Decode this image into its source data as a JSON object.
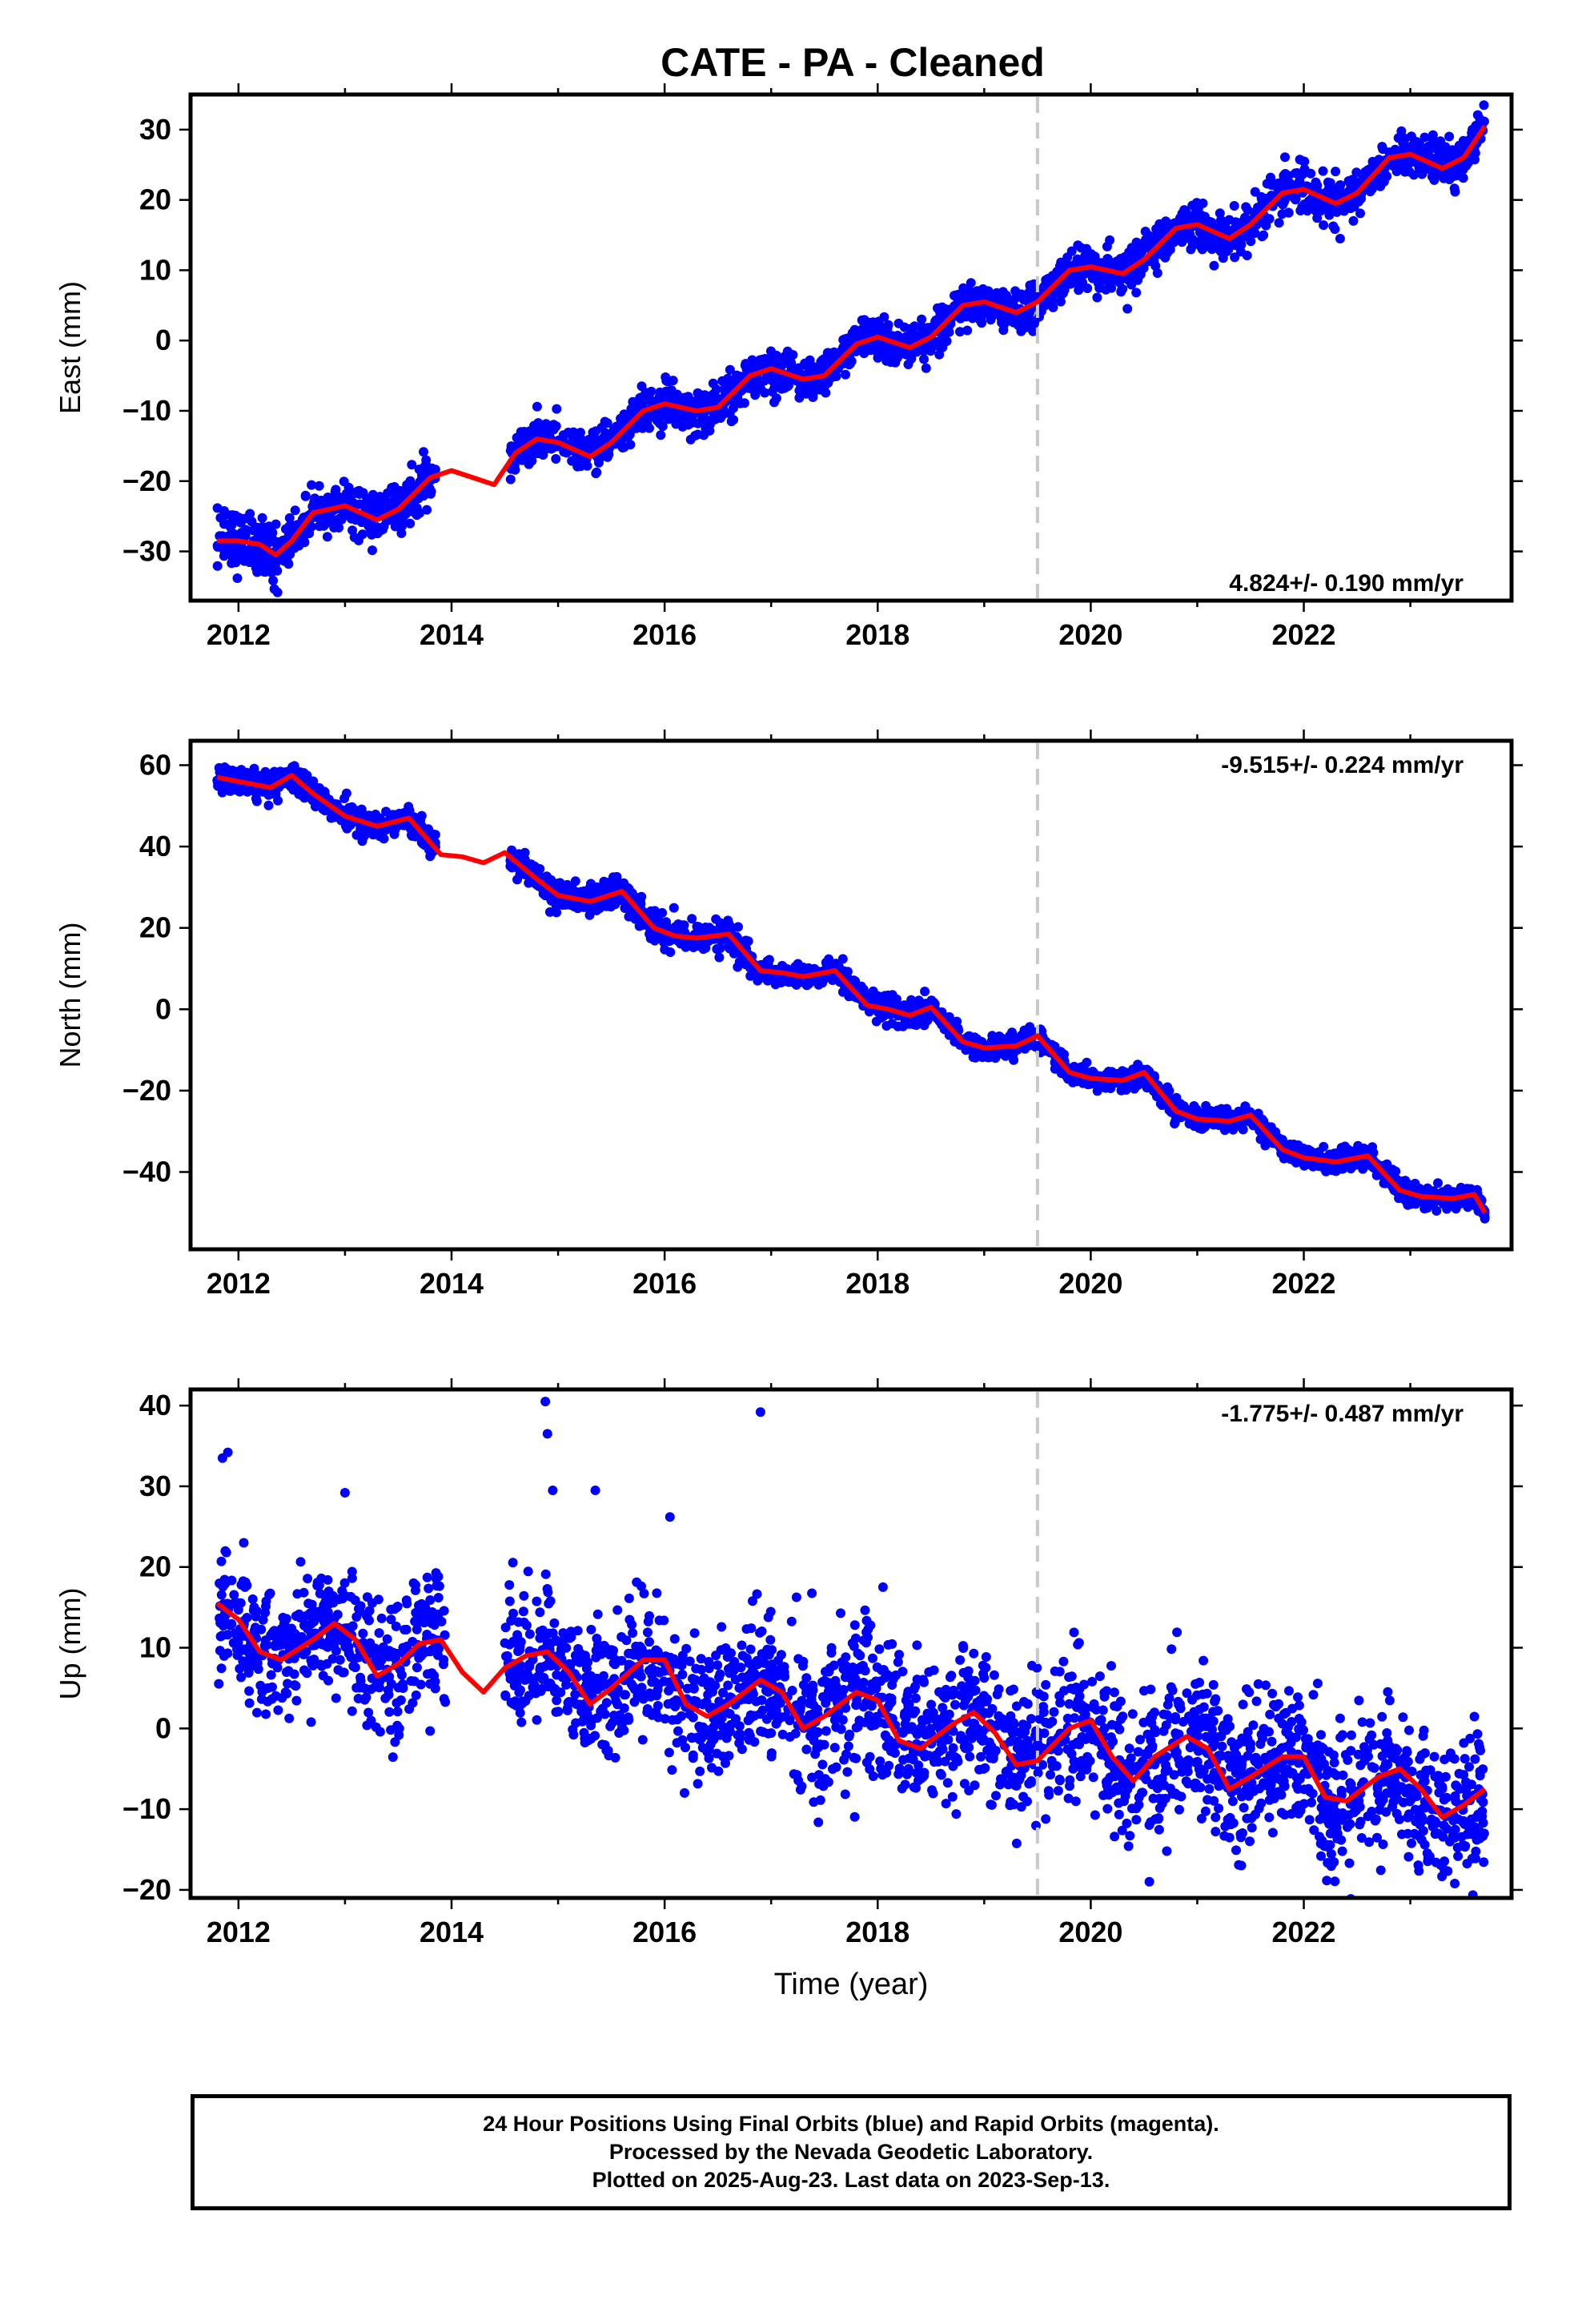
{
  "title": "CATE  - PA - Cleaned",
  "footer": {
    "lines": [
      "24 Hour Positions Using Final Orbits (blue) and Rapid Orbits (magenta).",
      "Processed by the Nevada Geodetic Laboratory.",
      "Plotted on 2025-Aug-23. Last data on 2023-Sep-13."
    ]
  },
  "colors": {
    "points": "#0000ff",
    "model": "#ff0000",
    "event_line": "#c8c8c8",
    "frame": "#000000"
  },
  "chart_data": [
    {
      "type": "scatter",
      "name": "east",
      "ylabel": "East (mm)",
      "xlabel": "",
      "xlim": [
        2011.55,
        2023.95
      ],
      "ylim": [
        -37,
        35
      ],
      "xticks": [
        "2012",
        "2014",
        "2016",
        "2018",
        "2020",
        "2022"
      ],
      "yticks": [
        "30",
        "20",
        "10",
        "0",
        "−10",
        "−20",
        "−30"
      ],
      "rate_label": "4.824+/- 0.190 mm/yr",
      "rate_position": "bottom-right",
      "event_line_x": 2019.5,
      "model": {
        "x": [
          2011.8,
          2012.0,
          2012.2,
          2012.35,
          2012.5,
          2012.7,
          2013.0,
          2013.3,
          2013.5,
          2013.8,
          2014.0,
          2014.2,
          2014.4,
          2014.6,
          2014.8,
          2015.0,
          2015.3,
          2015.5,
          2015.8,
          2016.0,
          2016.3,
          2016.5,
          2016.8,
          2017.0,
          2017.3,
          2017.5,
          2017.8,
          2018.0,
          2018.3,
          2018.5,
          2018.8,
          2019.0,
          2019.3,
          2019.5,
          2019.8,
          2020.0,
          2020.3,
          2020.5,
          2020.8,
          2021.0,
          2021.3,
          2021.5,
          2021.8,
          2022.0,
          2022.3,
          2022.5,
          2022.8,
          2023.0,
          2023.3,
          2023.5,
          2023.7
        ],
        "y": [
          -28.5,
          -28.5,
          -29.0,
          -30.5,
          -28.5,
          -24.5,
          -23.5,
          -25.5,
          -24.0,
          -19.5,
          -18.5,
          -19.5,
          -20.5,
          -16.0,
          -14.0,
          -14.5,
          -16.5,
          -14.5,
          -10.0,
          -9.0,
          -10.0,
          -9.5,
          -5.0,
          -4.0,
          -5.5,
          -5.0,
          -0.5,
          0.5,
          -1.0,
          0.5,
          5.0,
          5.5,
          4.0,
          5.5,
          10.0,
          10.5,
          9.5,
          11.5,
          16.0,
          16.5,
          14.5,
          16.5,
          21.0,
          21.5,
          19.5,
          21.0,
          26.0,
          26.5,
          24.5,
          26.0,
          30.5
        ]
      },
      "scatter_clusters": [
        {
          "x": [
            2011.8,
            2012.35
          ],
          "spread": 2.2
        },
        {
          "x": [
            2012.35,
            2013.85
          ],
          "spread": 1.6
        },
        {
          "x": [
            2014.55,
            2016.95
          ],
          "spread": 1.5
        },
        {
          "x": [
            2016.95,
            2019.3
          ],
          "spread": 1.4
        },
        {
          "x": [
            2019.3,
            2023.7
          ],
          "spread": 1.6
        }
      ]
    },
    {
      "type": "scatter",
      "name": "north",
      "ylabel": "North (mm)",
      "xlabel": "",
      "xlim": [
        2011.55,
        2023.95
      ],
      "ylim": [
        -59,
        66
      ],
      "xticks": [
        "2012",
        "2014",
        "2016",
        "2018",
        "2020",
        "2022"
      ],
      "yticks": [
        "60",
        "40",
        "20",
        "0",
        "−20",
        "−40"
      ],
      "rate_label": "-9.515+/- 0.224 mm/yr",
      "rate_position": "top-right",
      "event_line_x": 2019.5,
      "model": {
        "x": [
          2011.8,
          2012.0,
          2012.3,
          2012.5,
          2012.7,
          2013.0,
          2013.3,
          2013.6,
          2013.9,
          2014.1,
          2014.3,
          2014.5,
          2014.8,
          2015.0,
          2015.3,
          2015.6,
          2015.9,
          2016.1,
          2016.3,
          2016.6,
          2016.9,
          2017.1,
          2017.3,
          2017.6,
          2017.9,
          2018.1,
          2018.3,
          2018.5,
          2018.8,
          2019.0,
          2019.3,
          2019.5,
          2019.8,
          2020.0,
          2020.3,
          2020.5,
          2020.8,
          2021.0,
          2021.3,
          2021.5,
          2021.8,
          2022.0,
          2022.3,
          2022.6,
          2022.9,
          2023.1,
          2023.4,
          2023.6,
          2023.7
        ],
        "y": [
          57,
          56,
          54.5,
          57.5,
          53,
          47.5,
          45,
          47,
          38,
          37.5,
          36,
          38.5,
          32,
          28,
          26.5,
          29,
          20,
          18,
          17.5,
          18.5,
          9.5,
          9.0,
          8.0,
          9.5,
          1.0,
          0.0,
          -1.5,
          0.5,
          -8.0,
          -9.5,
          -9.0,
          -6.5,
          -15.5,
          -17.0,
          -17.5,
          -15.5,
          -25.0,
          -27.0,
          -27.5,
          -26.0,
          -34.5,
          -36.5,
          -37.5,
          -36.0,
          -44.5,
          -46.0,
          -46.5,
          -45.5,
          -50.0
        ]
      },
      "scatter_clusters": [
        {
          "x": [
            2011.8,
            2013.85
          ],
          "spread": 1.6
        },
        {
          "x": [
            2014.55,
            2016.95
          ],
          "spread": 1.8
        },
        {
          "x": [
            2016.95,
            2019.3
          ],
          "spread": 1.5
        },
        {
          "x": [
            2019.3,
            2023.7
          ],
          "spread": 1.3
        }
      ]
    },
    {
      "type": "scatter",
      "name": "up",
      "ylabel": "Up (mm)",
      "xlabel": "Time (year)",
      "xlim": [
        2011.55,
        2023.95
      ],
      "ylim": [
        -21,
        42
      ],
      "xticks": [
        "2012",
        "2014",
        "2016",
        "2018",
        "2020",
        "2022"
      ],
      "yticks": [
        "40",
        "30",
        "20",
        "10",
        "0",
        "−10",
        "−20"
      ],
      "rate_label": "-1.775+/- 0.487 mm/yr",
      "rate_position": "top-right",
      "event_line_x": 2019.5,
      "model": {
        "x": [
          2011.8,
          2012.0,
          2012.2,
          2012.4,
          2012.7,
          2012.9,
          2013.1,
          2013.3,
          2013.5,
          2013.7,
          2013.9,
          2014.1,
          2014.3,
          2014.5,
          2014.7,
          2014.9,
          2015.1,
          2015.3,
          2015.5,
          2015.8,
          2016.0,
          2016.2,
          2016.4,
          2016.6,
          2016.9,
          2017.1,
          2017.3,
          2017.5,
          2017.8,
          2018.0,
          2018.2,
          2018.4,
          2018.7,
          2018.9,
          2019.1,
          2019.3,
          2019.5,
          2019.8,
          2020.0,
          2020.2,
          2020.4,
          2020.6,
          2020.9,
          2021.1,
          2021.3,
          2021.5,
          2021.8,
          2022.0,
          2022.2,
          2022.4,
          2022.7,
          2022.9,
          2023.1,
          2023.3,
          2023.5,
          2023.7
        ],
        "y": [
          15.5,
          13.5,
          9.5,
          8.5,
          11.0,
          13.0,
          11.0,
          6.5,
          8.0,
          10.5,
          11.0,
          7.0,
          4.5,
          7.5,
          9.0,
          9.5,
          7.0,
          3.0,
          5.0,
          8.5,
          8.5,
          3.0,
          1.5,
          3.0,
          6.0,
          4.5,
          0.0,
          1.5,
          4.5,
          3.5,
          -1.5,
          -2.5,
          0.5,
          2.0,
          -0.5,
          -4.5,
          -4.0,
          0.0,
          1.0,
          -3.5,
          -6.5,
          -3.5,
          -1.0,
          -2.5,
          -7.5,
          -6.0,
          -3.5,
          -3.5,
          -8.5,
          -9.0,
          -6.0,
          -5.0,
          -7.5,
          -11.0,
          -9.5,
          -7.5
        ]
      },
      "scatter_clusters": [
        {
          "x": [
            2011.8,
            2013.95
          ],
          "spread": 3.8
        },
        {
          "x": [
            2014.5,
            2016.95
          ],
          "spread": 4.2
        },
        {
          "x": [
            2016.95,
            2019.3
          ],
          "spread": 4.5
        },
        {
          "x": [
            2019.3,
            2023.7
          ],
          "spread": 4.3
        }
      ],
      "outliers": [
        {
          "x": 2011.85,
          "y": 33.5
        },
        {
          "x": 2011.9,
          "y": 34.2
        },
        {
          "x": 2012.05,
          "y": 23.0
        },
        {
          "x": 2013.0,
          "y": 29.2
        },
        {
          "x": 2014.88,
          "y": 40.5
        },
        {
          "x": 2014.9,
          "y": 36.5
        },
        {
          "x": 2014.95,
          "y": 29.5
        },
        {
          "x": 2015.35,
          "y": 29.5
        },
        {
          "x": 2016.05,
          "y": 26.2
        },
        {
          "x": 2016.9,
          "y": 39.2
        },
        {
          "x": 2018.05,
          "y": 17.5
        },
        {
          "x": 2020.55,
          "y": -19.0
        }
      ]
    }
  ]
}
